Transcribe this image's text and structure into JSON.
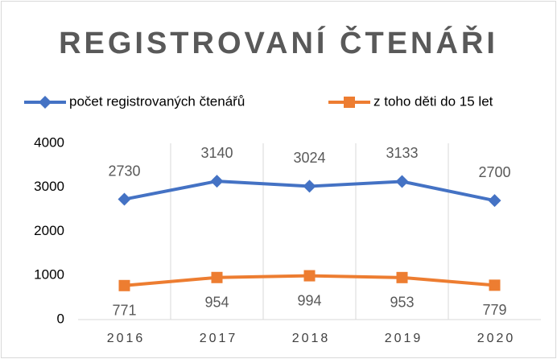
{
  "chart_data": {
    "type": "line",
    "title": "REGISTROVANÍ ČTENÁŘI",
    "categories": [
      "2016",
      "2017",
      "2018",
      "2019",
      "2020"
    ],
    "series": [
      {
        "name": "počet registrovaných čtenářů",
        "color": "#4472c4",
        "marker": "diamond",
        "values": [
          2730,
          3140,
          3024,
          3133,
          2700
        ]
      },
      {
        "name": "z toho děti do 15 let",
        "color": "#ed7d31",
        "marker": "square",
        "values": [
          771,
          954,
          994,
          953,
          779
        ]
      }
    ],
    "ylim": [
      0,
      4000
    ],
    "yticks": [
      0,
      1000,
      2000,
      3000,
      4000
    ],
    "xgrid": true,
    "legend": "top"
  }
}
